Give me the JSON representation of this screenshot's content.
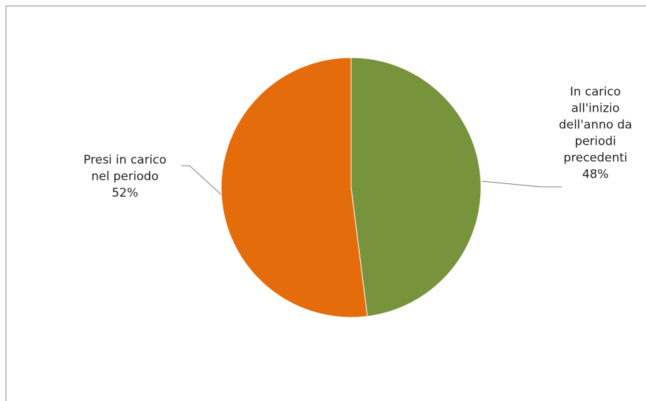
{
  "chart_data": {
    "type": "pie",
    "categories": [
      "In carico all'inizio dell'anno da periodi precedenti",
      "Presi in carico nel periodo"
    ],
    "values": [
      48,
      52
    ],
    "value_labels": [
      "48%",
      "52%"
    ],
    "colors": [
      "#77933c",
      "#e46c0a"
    ]
  }
}
